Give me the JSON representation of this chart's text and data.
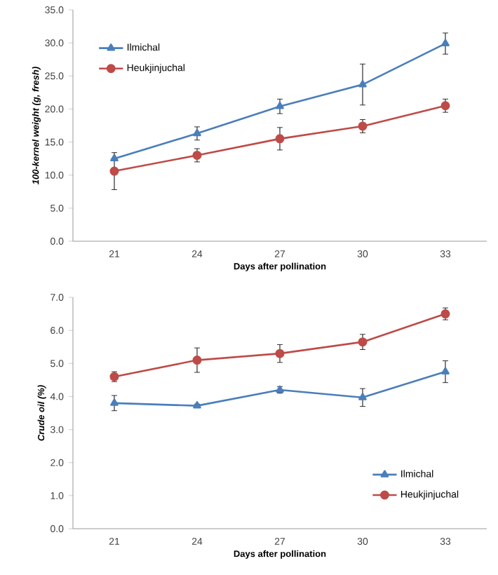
{
  "chart_data": [
    {
      "type": "line",
      "xlabel": "Days after pollination",
      "ylabel": "100-kernel weight (g, fresh)",
      "categories": [
        "21",
        "24",
        "27",
        "30",
        "33"
      ],
      "series": [
        {
          "name": "Ilmichal",
          "color": "#4a7ebb",
          "marker": "triangle",
          "values": [
            12.5,
            16.3,
            20.4,
            23.7,
            29.9
          ],
          "errors": [
            null,
            1.0,
            1.1,
            3.1,
            1.6
          ]
        },
        {
          "name": "Heukjinjuchal",
          "color": "#be4b48",
          "marker": "circle",
          "values": [
            10.6,
            13.0,
            15.5,
            17.4,
            20.5
          ],
          "errors": [
            2.8,
            1.0,
            1.7,
            1.0,
            1.0
          ]
        }
      ],
      "ylim": [
        0,
        35
      ],
      "yticks": [
        {
          "value": 0,
          "label": "0.0"
        },
        {
          "value": 5,
          "label": "5.0"
        },
        {
          "value": 10,
          "label": "10.0"
        },
        {
          "value": 15,
          "label": "15.0"
        },
        {
          "value": 20,
          "label": "20.0"
        },
        {
          "value": 25,
          "label": "25.0"
        },
        {
          "value": 30,
          "label": "30.0"
        },
        {
          "value": 35,
          "label": "35.0"
        }
      ],
      "grid": false,
      "legend": "top left",
      "line_style": "solid"
    },
    {
      "type": "line",
      "xlabel": "Days after pollination",
      "ylabel": "Crude oil (%)",
      "categories": [
        "21",
        "24",
        "27",
        "30",
        "33"
      ],
      "series": [
        {
          "name": "Ilmichal",
          "color": "#4a7ebb",
          "marker": "triangle",
          "values": [
            3.8,
            3.72,
            4.2,
            3.97,
            4.75
          ],
          "errors": [
            0.23,
            0.05,
            0.1,
            0.27,
            0.33
          ]
        },
        {
          "name": "Heukjinjuchal",
          "color": "#be4b48",
          "marker": "circle",
          "values": [
            4.6,
            5.1,
            5.3,
            5.65,
            6.5
          ],
          "errors": [
            0.15,
            0.37,
            0.27,
            0.23,
            0.18
          ]
        }
      ],
      "ylim": [
        0,
        7
      ],
      "yticks": [
        {
          "value": 0,
          "label": "0.0"
        },
        {
          "value": 1,
          "label": "1.0"
        },
        {
          "value": 2,
          "label": "2.0"
        },
        {
          "value": 3,
          "label": "3.0"
        },
        {
          "value": 4,
          "label": "4.0"
        },
        {
          "value": 5,
          "label": "5.0"
        },
        {
          "value": 6,
          "label": "6.0"
        },
        {
          "value": 7,
          "label": "7.0"
        }
      ],
      "grid": false,
      "legend": "bottom right",
      "line_style": "solid"
    }
  ]
}
